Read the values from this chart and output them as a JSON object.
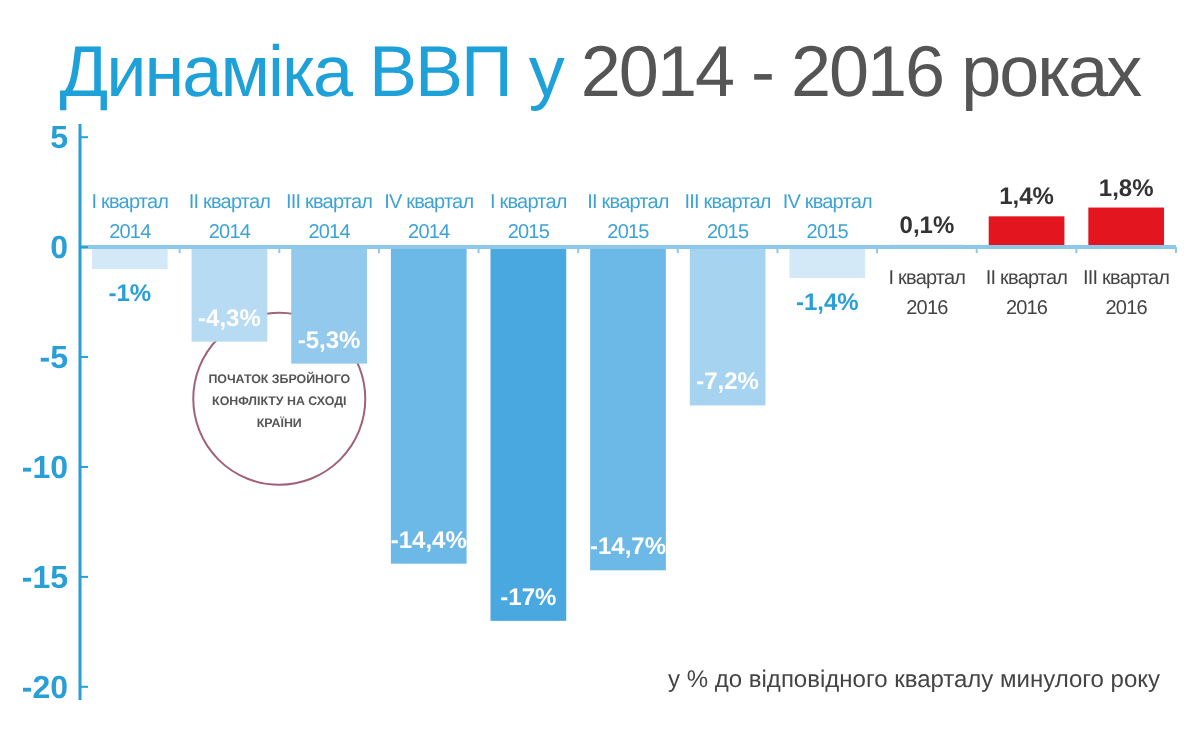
{
  "chart_data": {
    "type": "bar",
    "title": "Динаміка ВВП у 2014 - 2016 роках",
    "categories": [
      "I квартал 2014",
      "II квартал 2014",
      "III квартал 2014",
      "IV квартал 2014",
      "I квартал 2015",
      "II квартал 2015",
      "III квартал 2015",
      "IV квартал 2015",
      "I квартал 2016",
      "II квартал 2016",
      "III квартал 2016"
    ],
    "values": [
      -1,
      -4.3,
      -5.3,
      -14.4,
      -17,
      -14.7,
      -7.2,
      -1.4,
      0.1,
      1.4,
      1.8
    ],
    "colors": [
      "#d3e9f7",
      "#b6dbf2",
      "#93c9ec",
      "#6cb8e6",
      "#4aa8e0",
      "#6cb8e6",
      "#a6d3f0",
      "#d3e9f7",
      "#e3161f",
      "#e3161f",
      "#e3161f"
    ],
    "value_labels": [
      "-1%",
      "-4,3%",
      "-5,3%",
      "-14,4%",
      "-17%",
      "-14,7%",
      "-7,2%",
      "-1,4%",
      "0,1%",
      "1,4%",
      "1,8%"
    ],
    "ylim": [
      -20.6,
      5.6
    ],
    "yticks": [
      5,
      0,
      -5,
      -10,
      -15,
      -20
    ],
    "grid": false,
    "annotations": [
      "ПОЧАТОК ЗБРОЙНОГО КОНФЛІКТУ НА СХОДІ КРАЇНИ",
      "у % до відповідного кварталу минулого року"
    ]
  }
}
